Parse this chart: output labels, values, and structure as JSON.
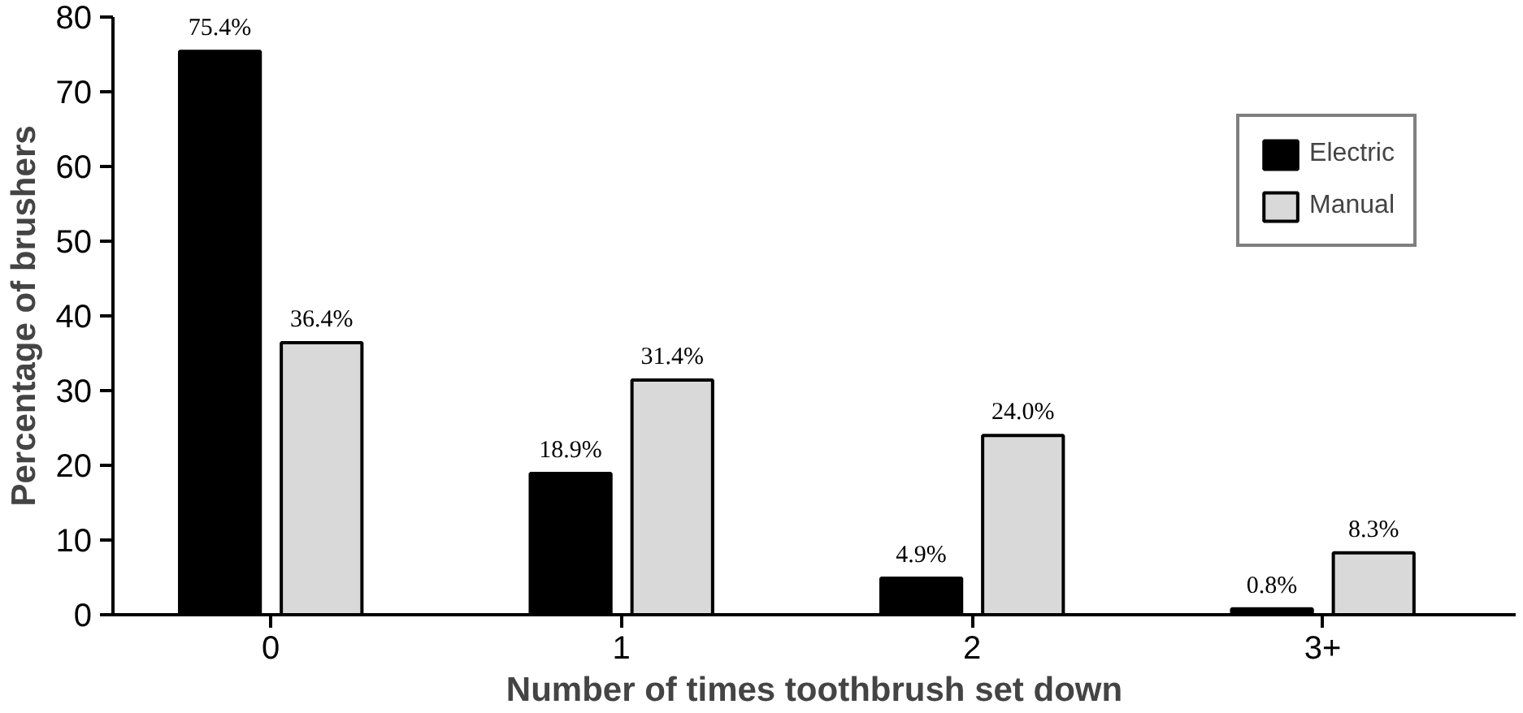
{
  "chart_data": {
    "type": "bar",
    "xlabel": "Number of times toothbrush set down",
    "ylabel": "Percentage of brushers",
    "categories": [
      "0",
      "1",
      "2",
      "3+"
    ],
    "series": [
      {
        "name": "Electric",
        "color": "#000000",
        "values": [
          75.4,
          18.9,
          4.9,
          0.8
        ],
        "value_labels": [
          "75.4%",
          "18.9%",
          "4.9%",
          "0.8%"
        ]
      },
      {
        "name": "Manual",
        "color": "#d9d9d9",
        "values": [
          36.4,
          31.4,
          24.0,
          8.3
        ],
        "value_labels": [
          "36.4%",
          "31.4%",
          "24.0%",
          "8.3%"
        ]
      }
    ],
    "ylim": [
      0,
      80
    ],
    "yticks": [
      0,
      10,
      20,
      30,
      40,
      50,
      60,
      70,
      80
    ],
    "grid": false,
    "legend": "top right"
  }
}
